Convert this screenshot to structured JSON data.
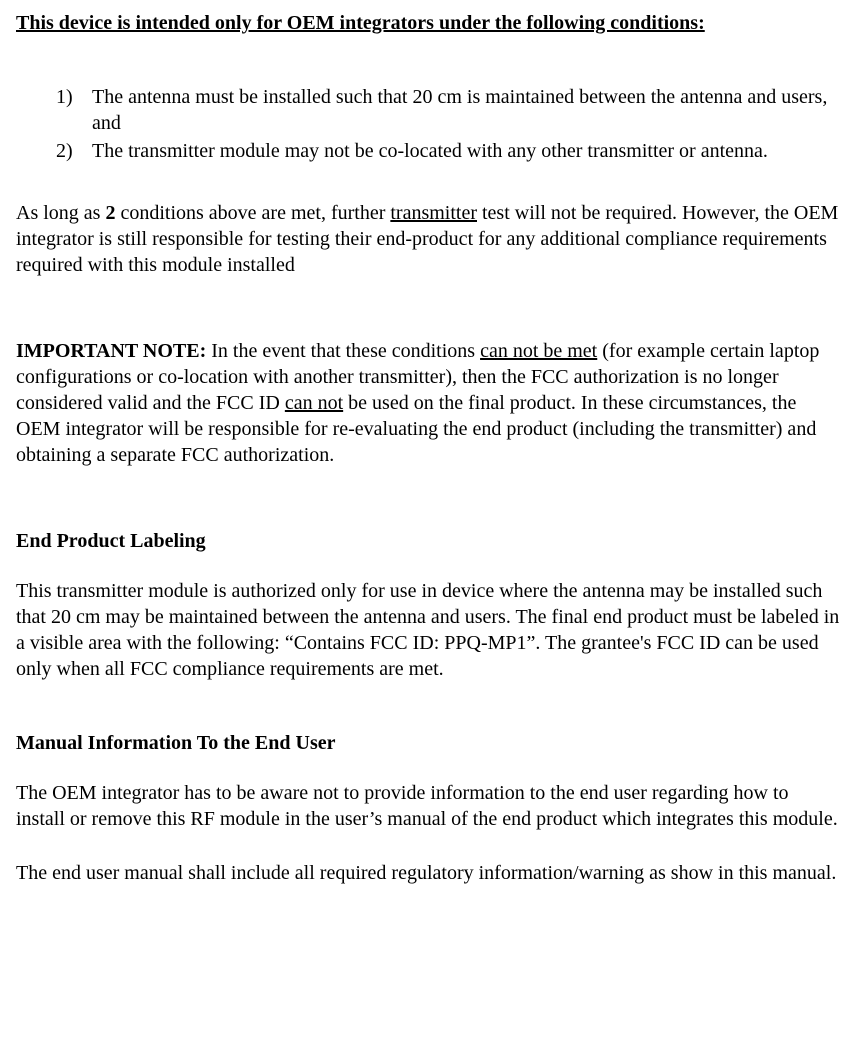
{
  "title": "This device is intended only for OEM integrators under the following conditions:",
  "list": {
    "items": [
      {
        "num": "1)",
        "text": "The antenna must be installed such that 20 cm is maintained between the antenna and users, and"
      },
      {
        "num": "2)",
        "text": "The transmitter module may not be co-located with any other transmitter or antenna."
      }
    ]
  },
  "p1": {
    "a": "As long as ",
    "b_bold": "2",
    "c": " conditions above are met, further ",
    "d_ul": "transmitter",
    "e": " test will not be required. However, the OEM integrator is still responsible for testing their end-product for any additional compliance requirements required with this module installed"
  },
  "p2": {
    "a_bold": "IMPORTANT NOTE:",
    "b": " In the event that these conditions ",
    "c_ul": "can not be met",
    "d": " (for example certain laptop configurations or co-location with another transmitter), then the FCC authorization is no longer considered valid and the FCC ID ",
    "e_ul": "can not",
    "f": " be used on the final product. In these circumstances, the OEM integrator will be responsible for re-evaluating the end product (including the transmitter) and obtaining a separate FCC authorization."
  },
  "h1": "End Product Labeling",
  "p3": "This transmitter module is authorized only for use in device where the antenna may be installed such that 20 cm may be maintained between the antenna and users. The final end product must be labeled in a visible area with the following: “Contains FCC ID: PPQ-MP1”. The grantee's FCC ID can be used only when all FCC compliance requirements are met.",
  "h2": "Manual Information To the End User",
  "p4": "The OEM integrator has to be aware not to provide information to the end user regarding how to install or remove this RF module in the user’s manual of the end product which integrates this module.",
  "p5": "The end user manual shall include all required regulatory information/warning as show in this manual."
}
